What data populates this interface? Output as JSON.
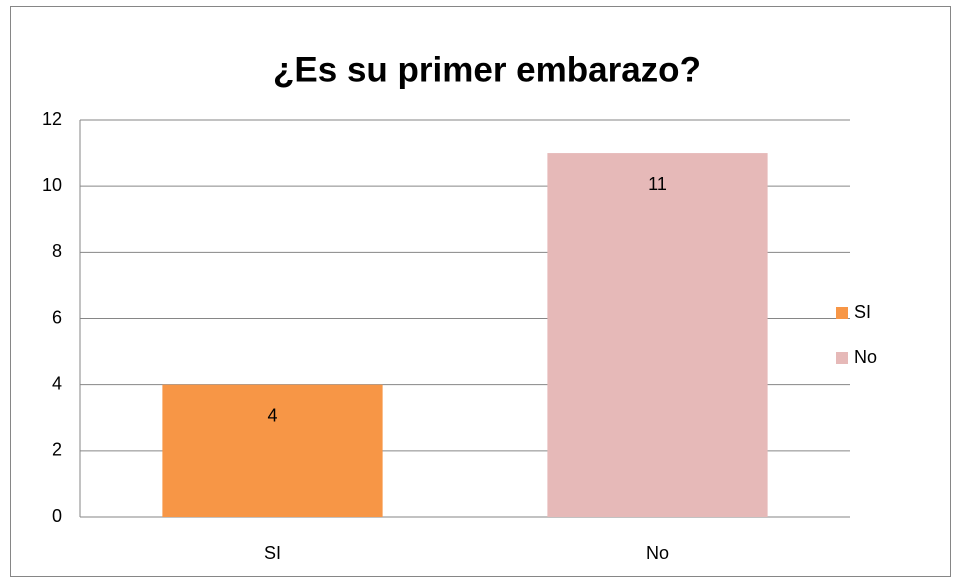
{
  "chart_data": {
    "type": "bar",
    "title": "¿Es su primer embarazo?",
    "categories": [
      "SI",
      "No"
    ],
    "values": [
      4,
      11
    ],
    "colors": [
      "#f79646",
      "#e6b9b8"
    ],
    "ylim": [
      0,
      12
    ],
    "yticks": [
      0,
      2,
      4,
      6,
      8,
      10,
      12
    ],
    "grid": true,
    "legend": "right",
    "data_labels": true
  }
}
